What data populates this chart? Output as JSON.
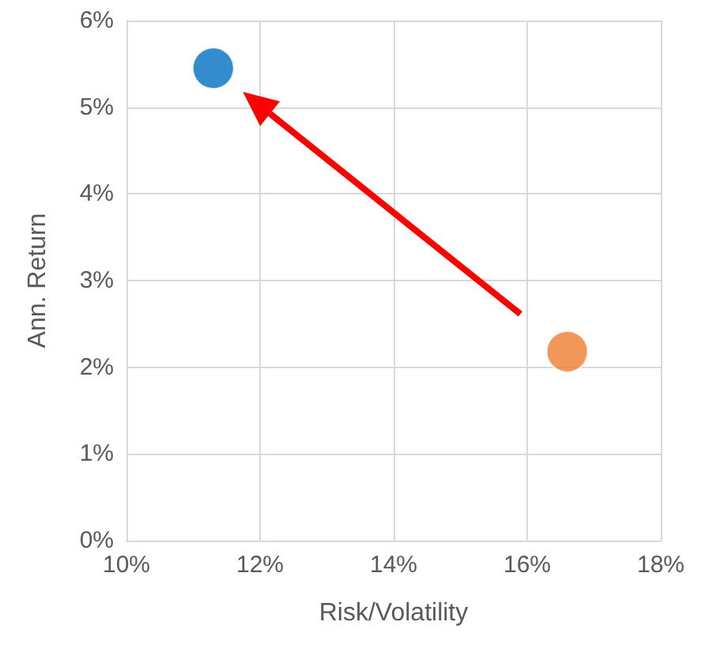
{
  "chart_data": {
    "type": "scatter",
    "xlabel": "Risk/Volatility",
    "ylabel": "Ann. Return",
    "series": [
      {
        "color": "#0070c0",
        "x": [
          11.3
        ],
        "values": [
          5.45
        ]
      },
      {
        "color": "#ed7d31",
        "x": [
          16.6
        ],
        "values": [
          2.18
        ]
      }
    ],
    "xlim": [
      10,
      18
    ],
    "xticks": [
      {
        "value": 10,
        "label": "10%"
      },
      {
        "value": 12,
        "label": "12%"
      },
      {
        "value": 14,
        "label": "14%"
      },
      {
        "value": 16,
        "label": "16%"
      },
      {
        "value": 18,
        "label": "18%"
      }
    ],
    "ylim": [
      0,
      6
    ],
    "yticks": [
      {
        "value": 0,
        "label": "0%"
      },
      {
        "value": 1,
        "label": "1%"
      },
      {
        "value": 2,
        "label": "2%"
      },
      {
        "value": 3,
        "label": "3%"
      },
      {
        "value": 4,
        "label": "4%"
      },
      {
        "value": 5,
        "label": "5%"
      },
      {
        "value": 6,
        "label": "6%"
      }
    ],
    "grid": true,
    "marker": "circle"
  }
}
